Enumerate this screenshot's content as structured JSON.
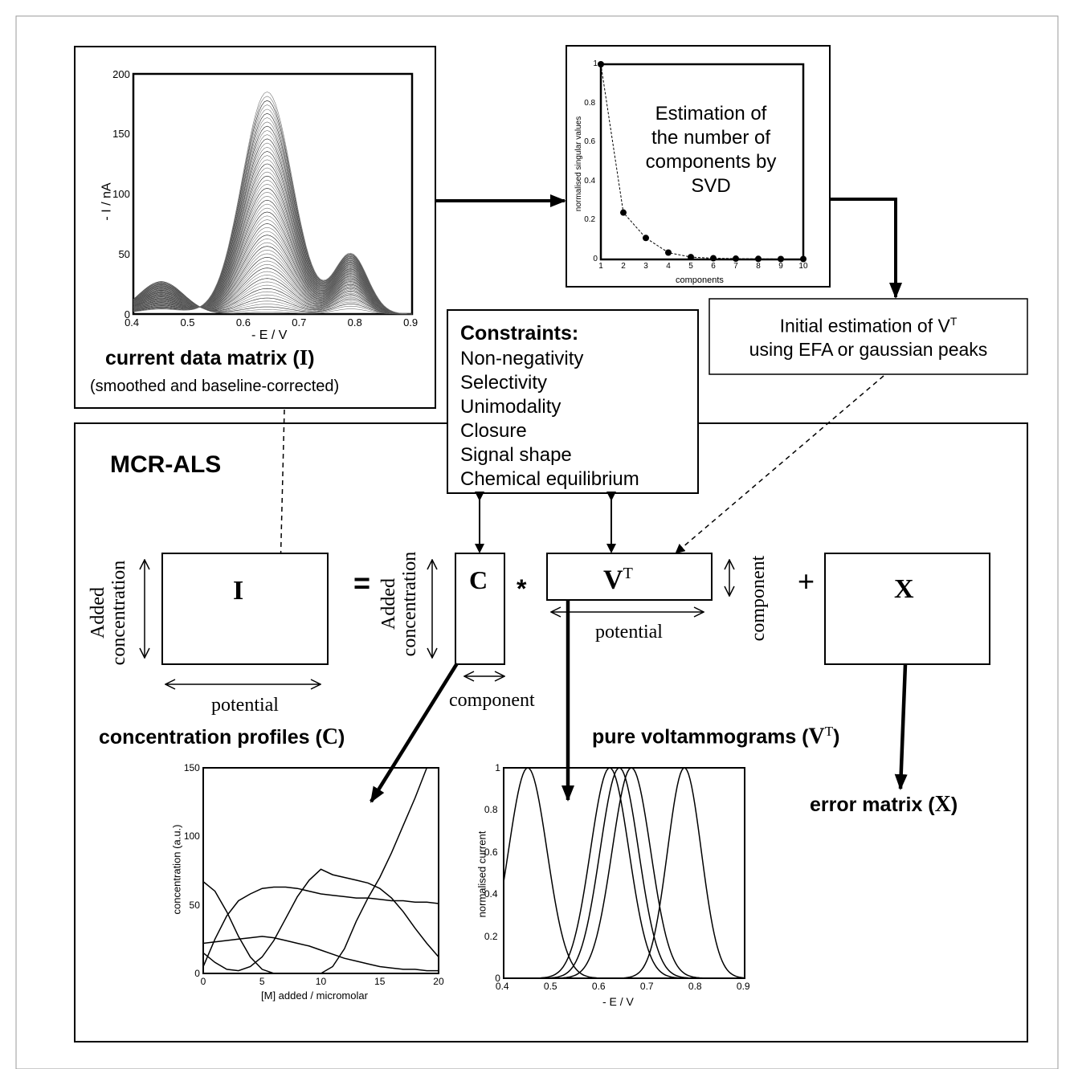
{
  "panels": {
    "current_data": {
      "title_prefix": "current data matrix (",
      "title_symbol": "I",
      "title_suffix": ")",
      "subtitle": "(smoothed and baseline-corrected)"
    },
    "svd": {
      "text_lines": [
        "Estimation of",
        "the number of",
        "components by",
        "SVD"
      ]
    },
    "initial_estimation": {
      "line1_prefix": "Initial estimation of V",
      "line1_sup": "T",
      "line2": "using EFA or gaussian peaks"
    },
    "constraints": {
      "title": "Constraints:",
      "items": [
        "Non-negativity",
        "Selectivity",
        "Unimodality",
        "Closure",
        "Signal shape",
        "Chemical equilibrium"
      ]
    },
    "mcr_als": {
      "title": "MCR-ALS"
    }
  },
  "equation": {
    "I": "I",
    "C": "C",
    "V": "V",
    "V_sup": "T",
    "X": "X",
    "equals": "=",
    "times": "*",
    "plus": "+",
    "added_concentration_line1": "Added",
    "added_concentration_line2": "concentration",
    "potential": "potential",
    "component": "component"
  },
  "outputs": {
    "concentration_prefix": "concentration profiles (",
    "concentration_symbol": "C",
    "concentration_suffix": ")",
    "voltammograms_prefix": "pure voltammograms (",
    "voltammograms_symbol": "V",
    "voltammograms_sup": "T",
    "voltammograms_suffix": ")",
    "error_prefix": "error matrix (",
    "error_symbol": "X",
    "error_suffix": ")"
  },
  "chart_data": [
    {
      "id": "current_data_matrix",
      "type": "line",
      "xlabel": "- E / V",
      "ylabel": "- I / nA",
      "xlim": [
        0.4,
        0.9
      ],
      "ylim": [
        0,
        200
      ],
      "xticks": [
        "0.4",
        "0.5",
        "0.6",
        "0.7",
        "0.8",
        "0.9"
      ],
      "yticks": [
        "0",
        "50",
        "100",
        "150",
        "200"
      ],
      "grid": false,
      "series_count": 60,
      "peaks": {
        "peak1": {
          "center": 0.45,
          "width": 0.04,
          "max_height": 27
        },
        "peak2": {
          "center": 0.64,
          "width": 0.045,
          "max_height": 185
        },
        "peak3": {
          "center": 0.79,
          "width": 0.03,
          "max_height": 50
        }
      }
    },
    {
      "id": "svd",
      "type": "scatter",
      "xlabel": "components",
      "ylabel": "normalised singular values",
      "xlim": [
        1,
        10
      ],
      "ylim": [
        0,
        1
      ],
      "xticks": [
        "1",
        "2",
        "3",
        "4",
        "5",
        "6",
        "7",
        "8",
        "9",
        "10"
      ],
      "yticks": [
        "0",
        "0.2",
        "0.4",
        "0.6",
        "0.8",
        "1"
      ],
      "x": [
        1,
        2,
        3,
        4,
        5,
        6,
        7,
        8,
        9,
        10
      ],
      "y": [
        1.0,
        0.24,
        0.11,
        0.035,
        0.012,
        0.006,
        0.004,
        0.003,
        0.002,
        0.002
      ]
    },
    {
      "id": "concentration_profiles",
      "type": "line",
      "xlabel": "[M] added / micromolar",
      "ylabel": "concentration (a.u.)",
      "xlim": [
        0,
        20
      ],
      "ylim": [
        0,
        150
      ],
      "xticks": [
        "0",
        "5",
        "10",
        "15",
        "20"
      ],
      "yticks": [
        "0",
        "50",
        "100",
        "150"
      ],
      "series": [
        {
          "x": [
            0,
            1,
            2,
            3,
            4,
            5,
            6
          ],
          "y": [
            67,
            60,
            45,
            27,
            12,
            3,
            0
          ]
        },
        {
          "x": [
            0,
            1,
            2,
            3,
            4,
            5,
            6,
            7,
            8,
            9,
            10,
            11,
            12,
            13,
            14,
            15,
            16,
            17,
            18,
            19,
            20
          ],
          "y": [
            5,
            25,
            42,
            53,
            58,
            62,
            63,
            63,
            62,
            60,
            58,
            57,
            56,
            55,
            55,
            54,
            53,
            53,
            52,
            52,
            51
          ]
        },
        {
          "x": [
            0,
            1,
            2,
            3,
            4,
            5,
            6,
            7,
            8,
            9,
            10,
            11,
            12,
            13,
            14,
            15,
            16,
            17,
            18,
            19,
            20
          ],
          "y": [
            22,
            23,
            24,
            25,
            26,
            27,
            26,
            24,
            22,
            20,
            17,
            14,
            11,
            9,
            7,
            5,
            4,
            3,
            3,
            2,
            2
          ]
        },
        {
          "x": [
            0,
            1,
            2,
            3,
            4,
            5,
            6,
            7,
            8,
            9,
            10,
            11,
            12,
            13,
            14,
            15,
            16,
            17,
            18,
            19,
            20
          ],
          "y": [
            15,
            8,
            3,
            2,
            5,
            12,
            24,
            40,
            56,
            68,
            76,
            72,
            70,
            68,
            66,
            62,
            55,
            45,
            33,
            22,
            12
          ]
        },
        {
          "x": [
            10,
            11,
            12,
            13,
            14,
            15,
            16,
            17,
            18,
            19
          ],
          "y": [
            0,
            5,
            18,
            38,
            55,
            70,
            88,
            108,
            128,
            150
          ]
        }
      ]
    },
    {
      "id": "pure_voltammograms",
      "type": "line",
      "xlabel": "- E /  V",
      "ylabel": "normalised current",
      "xlim": [
        0.4,
        0.9
      ],
      "ylim": [
        0,
        1
      ],
      "xticks": [
        "0.4",
        "0.5",
        "0.6",
        "0.7",
        "0.8",
        "0.9"
      ],
      "yticks": [
        "0",
        "0.2",
        "0.4",
        "0.6",
        "0.8",
        "1"
      ],
      "series": [
        {
          "center": 0.45,
          "width": 0.04
        },
        {
          "center": 0.62,
          "width": 0.04
        },
        {
          "center": 0.64,
          "width": 0.04
        },
        {
          "center": 0.665,
          "width": 0.04
        },
        {
          "center": 0.775,
          "width": 0.035
        }
      ]
    }
  ]
}
